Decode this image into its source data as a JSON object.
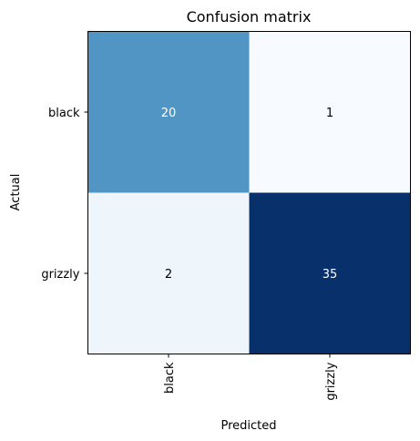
{
  "chart_data": {
    "type": "heatmap",
    "title": "Confusion matrix",
    "xlabel": "Predicted",
    "ylabel": "Actual",
    "x_categories": [
      "black",
      "grizzly"
    ],
    "y_categories": [
      "black",
      "grizzly"
    ],
    "values": [
      [
        20,
        1
      ],
      [
        2,
        35
      ]
    ],
    "colormap": "Blues",
    "grid": false
  },
  "colors": {
    "low": "#f7fbff",
    "mid": "#5aa2cf",
    "high": "#08306b",
    "text_dark": "#000000",
    "text_light": "#ffffff"
  }
}
